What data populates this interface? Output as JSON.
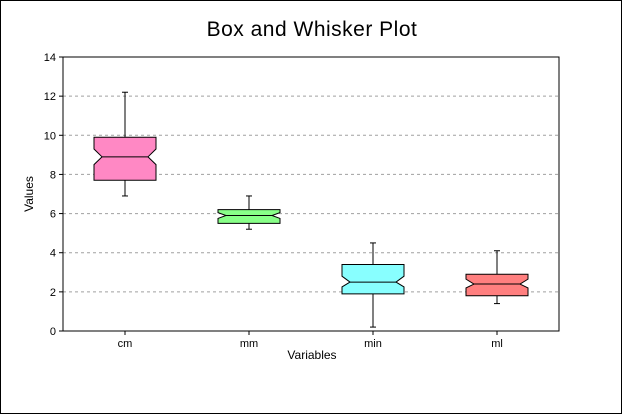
{
  "chart_data": {
    "type": "box",
    "title": "Box and Whisker Plot",
    "xlabel": "Variables",
    "ylabel": "Values",
    "ylim": [
      0,
      14
    ],
    "yticks": [
      0,
      2,
      4,
      6,
      8,
      10,
      12,
      14
    ],
    "grid": "horizontal-dashed",
    "notched": true,
    "categories": [
      "cm",
      "mm",
      "min",
      "ml"
    ],
    "boxes": [
      {
        "label": "cm",
        "min": 6.9,
        "q1": 7.7,
        "median": 8.9,
        "q3": 9.9,
        "max": 12.2,
        "notch_low": 8.5,
        "notch_high": 9.3,
        "color": "#ff88c4"
      },
      {
        "label": "mm",
        "min": 5.2,
        "q1": 5.5,
        "median": 5.9,
        "q3": 6.2,
        "max": 6.9,
        "notch_low": 5.75,
        "notch_high": 6.05,
        "color": "#88ff88"
      },
      {
        "label": "min",
        "min": 0.2,
        "q1": 1.9,
        "median": 2.5,
        "q3": 3.4,
        "max": 4.5,
        "notch_low": 2.25,
        "notch_high": 2.8,
        "color": "#88ffff"
      },
      {
        "label": "ml",
        "min": 1.4,
        "q1": 1.8,
        "median": 2.4,
        "q3": 2.9,
        "max": 4.1,
        "notch_low": 2.2,
        "notch_high": 2.65,
        "color": "#ff7f7f"
      }
    ]
  }
}
